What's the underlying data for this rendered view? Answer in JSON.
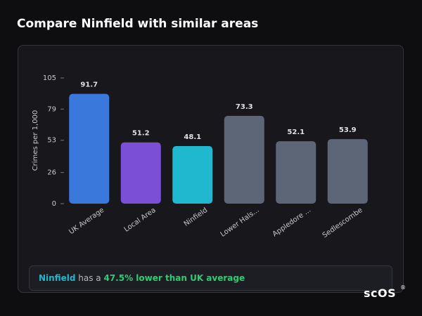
{
  "header": {
    "title": "Compare Ninfield with similar areas"
  },
  "chart_data": {
    "type": "bar",
    "ylabel": "Crimes per 1,000",
    "categories": [
      "UK Average",
      "Local Area",
      "Ninfield",
      "Lower Hals...",
      "Appledore ...",
      "Sedlescombe"
    ],
    "values": [
      91.7,
      51.2,
      48.1,
      73.3,
      52.1,
      53.9
    ],
    "colors": [
      "#3a78dc",
      "#7b4fd6",
      "#20b8cf",
      "#5d6677",
      "#5d6677",
      "#5d6677"
    ],
    "ylim": [
      0,
      105
    ],
    "yticks": [
      0,
      26,
      53,
      79,
      105
    ],
    "grid": false
  },
  "summary": {
    "area": "Ninfield",
    "text": "has a",
    "highlight": "47.5% lower than UK average"
  },
  "logo": {
    "text": "scOS",
    "mark": "®"
  }
}
